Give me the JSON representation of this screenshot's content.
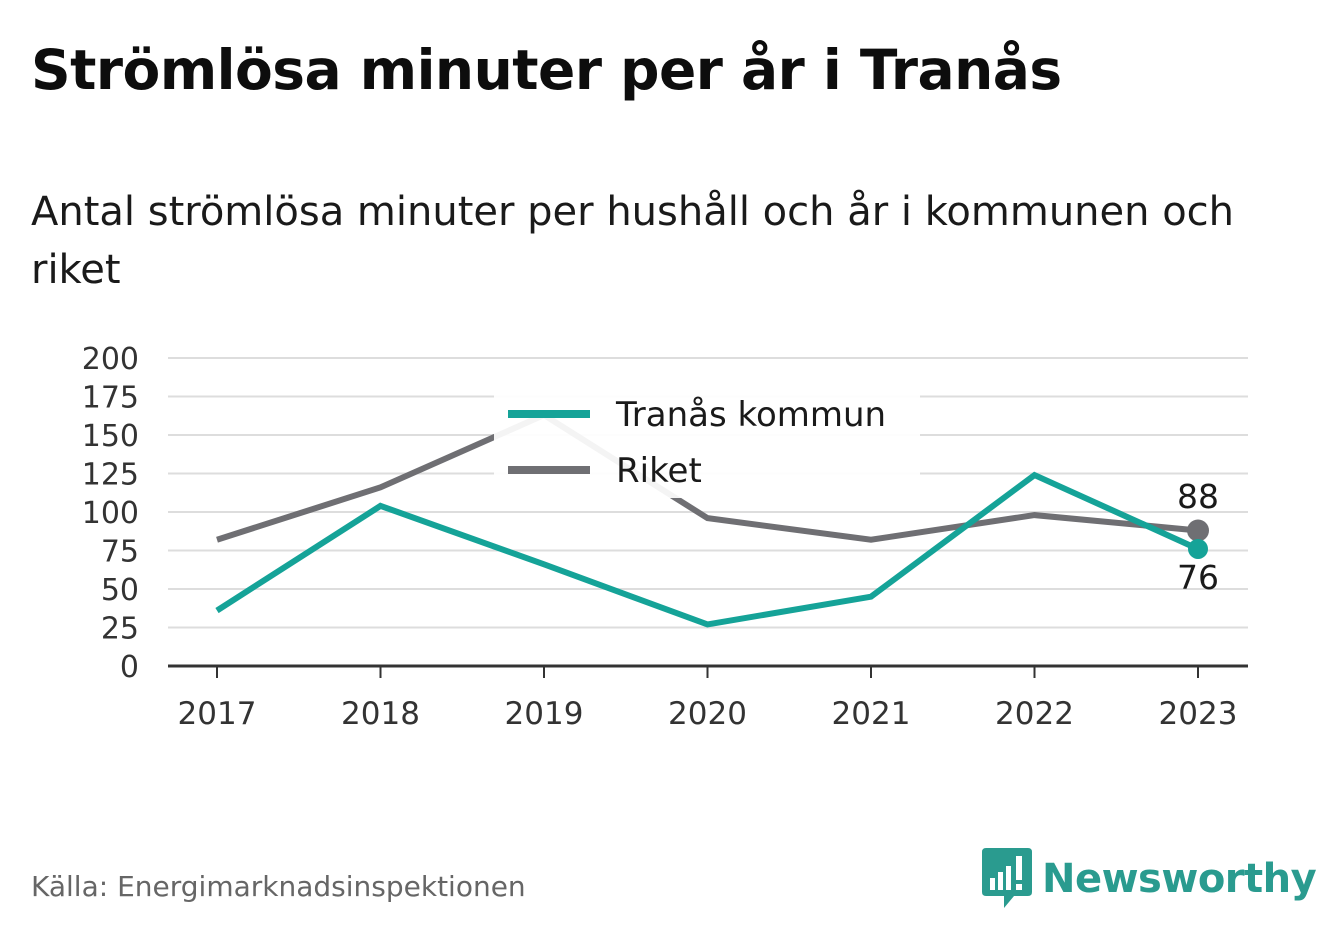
{
  "header": {
    "title": "Strömlösa minuter per år i Tranås",
    "subtitle": "Antal strömlösa minuter per hushåll och år i kommunen och riket"
  },
  "footer": {
    "source": "Källa: Energimarknadsinspektionen",
    "brand": "Newsworthy",
    "brand_icon": "bar-chart-speech-bubble-icon"
  },
  "colors": {
    "tranas": "#15a398",
    "riket": "#6f6f73",
    "grid": "#dddddd",
    "axis": "#333333",
    "brand": "#2a9b8f"
  },
  "chart_data": {
    "type": "line",
    "x": [
      "2017",
      "2018",
      "2019",
      "2020",
      "2021",
      "2022",
      "2023"
    ],
    "ylim": [
      0,
      200
    ],
    "yticks": [
      "0",
      "25",
      "50",
      "75",
      "100",
      "125",
      "150",
      "175",
      "200"
    ],
    "grid": true,
    "legend_position": "top-center",
    "series": [
      {
        "name": "Tranås kommun",
        "values": [
          36,
          104,
          66,
          27,
          45,
          124,
          76
        ],
        "end_label": "76"
      },
      {
        "name": "Riket",
        "values": [
          82,
          116,
          163,
          96,
          82,
          98,
          88
        ],
        "end_label": "88"
      }
    ]
  }
}
